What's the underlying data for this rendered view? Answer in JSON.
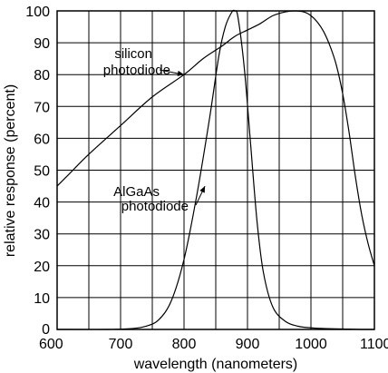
{
  "chart_data": {
    "type": "line",
    "xlabel": "wavelength (nanometers)",
    "ylabel": "relative response (percent)",
    "xlim": [
      600,
      1100
    ],
    "ylim": [
      0,
      100
    ],
    "x_ticks": [
      600,
      700,
      800,
      900,
      1000,
      1100
    ],
    "x_tick_labels": [
      "600",
      "700",
      "800",
      "900",
      "1000",
      "1100"
    ],
    "y_ticks": [
      0,
      10,
      20,
      30,
      40,
      50,
      60,
      70,
      80,
      90,
      100
    ],
    "y_tick_labels": [
      "0",
      "10",
      "20",
      "30",
      "40",
      "50",
      "60",
      "70",
      "80",
      "90",
      "100"
    ],
    "x_grid_step": 50,
    "y_grid_step": 10,
    "grid": true,
    "series": [
      {
        "name": "silicon photodiode",
        "x": [
          600,
          620,
          650,
          700,
          750,
          800,
          830,
          860,
          880,
          900,
          920,
          940,
          960,
          975,
          990,
          1000,
          1010,
          1020,
          1030,
          1040,
          1050,
          1060,
          1070,
          1080,
          1090,
          1100
        ],
        "y": [
          45,
          49,
          55,
          64,
          73,
          80,
          85,
          89,
          92,
          94,
          96,
          98.5,
          99.7,
          100,
          99.6,
          98.5,
          96.5,
          93.5,
          89,
          83,
          74,
          62,
          48,
          36,
          27,
          20
        ]
      },
      {
        "name": "AlGaAs photodiode",
        "x": [
          600,
          680,
          720,
          740,
          760,
          780,
          800,
          820,
          840,
          855,
          865,
          875,
          880,
          885,
          895,
          905,
          915,
          925,
          940,
          960,
          980,
          1000,
          1020,
          1040,
          1060,
          1080,
          1100
        ],
        "y": [
          0,
          0,
          0.3,
          1,
          3,
          9,
          22,
          42,
          66,
          86,
          95,
          99.5,
          100,
          98,
          82,
          58,
          34,
          18,
          7,
          2.5,
          1,
          0.5,
          0.3,
          0.2,
          0.1,
          0,
          0
        ]
      }
    ],
    "annotations": [
      {
        "lines": [
          "silicon",
          "photodiode"
        ],
        "target": {
          "x": 800,
          "y": 80
        }
      },
      {
        "lines": [
          "AlGaAs",
          "photodiode"
        ],
        "target": {
          "x": 833,
          "y": 45
        }
      }
    ]
  }
}
